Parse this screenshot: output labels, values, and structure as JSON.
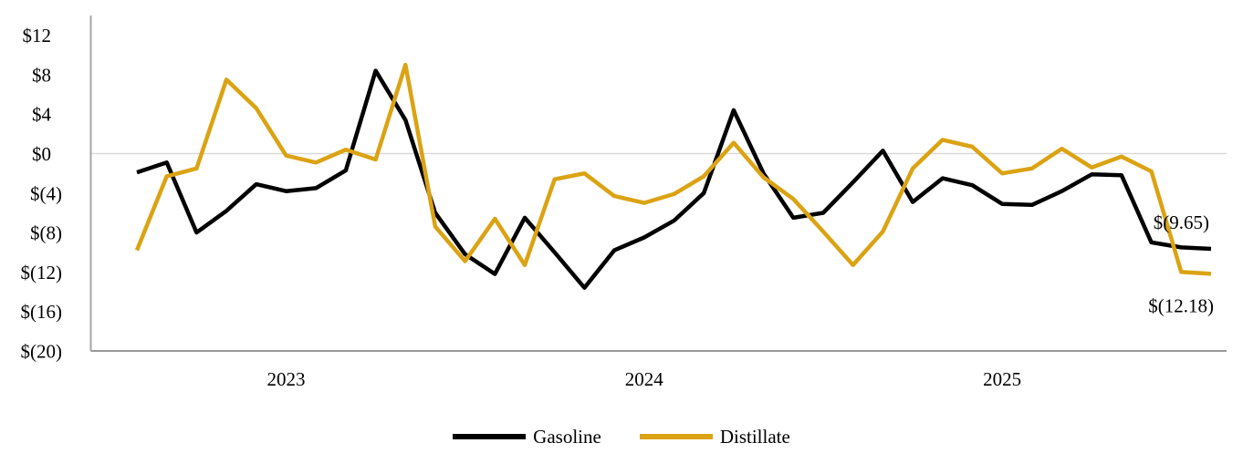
{
  "chart_data": {
    "type": "line",
    "title": "",
    "y_axis": {
      "tick_labels": [
        "$12",
        "$8",
        "$4",
        "$0",
        "$(4)",
        "$(8)",
        "$(12)",
        "$(16)",
        "$(20)"
      ],
      "tick_values": [
        12,
        8,
        4,
        0,
        -4,
        -8,
        -12,
        -16,
        -20
      ],
      "ylim": [
        -20,
        14
      ],
      "zero_gridline": true
    },
    "x_axis": {
      "year_labels": [
        {
          "label": "2023",
          "index": 5
        },
        {
          "label": "2024",
          "index": 17
        },
        {
          "label": "2025",
          "index": 29
        }
      ],
      "points_count": 37
    },
    "series": [
      {
        "name": "Gasoline",
        "color": "#000000",
        "values": [
          -1.9,
          -0.9,
          -8.0,
          -5.8,
          -3.1,
          -3.8,
          -3.5,
          -1.7,
          8.4,
          3.4,
          -6.0,
          -10.2,
          -12.2,
          -6.5,
          -10.0,
          -13.6,
          -9.8,
          -8.5,
          -6.8,
          -4.0,
          4.4,
          -2.0,
          -6.5,
          -6.0,
          -2.9,
          0.3,
          -4.9,
          -2.5,
          -3.2,
          -5.1,
          -5.2,
          -3.8,
          -2.1,
          -2.2,
          -9.0,
          -9.5,
          -9.65
        ]
      },
      {
        "name": "Distillate",
        "color": "#DBA313",
        "values": [
          -9.8,
          -2.3,
          -1.5,
          7.5,
          4.6,
          -0.2,
          -0.9,
          0.4,
          -0.6,
          9.0,
          -7.4,
          -10.9,
          -6.6,
          -11.3,
          -2.6,
          -2.0,
          -4.3,
          -5.0,
          -4.1,
          -2.3,
          1.1,
          -2.4,
          -4.6,
          -7.9,
          -11.3,
          -7.9,
          -1.5,
          1.4,
          0.7,
          -2.0,
          -1.5,
          0.5,
          -1.4,
          -0.3,
          -1.8,
          -12.0,
          -12.18
        ]
      }
    ],
    "annotations": [
      {
        "text": "$(9.65)",
        "series": "Gasoline",
        "point_index": 36,
        "placement": "above"
      },
      {
        "text": "$(12.18)",
        "series": "Distillate",
        "point_index": 36,
        "placement": "below"
      }
    ],
    "legend": [
      {
        "label": "Gasoline",
        "color": "#000000"
      },
      {
        "label": "Distillate",
        "color": "#DBA313"
      }
    ],
    "grid_color": "#D9D9D9",
    "axis_color": "#A6A6A6",
    "legend_position": "bottom"
  }
}
